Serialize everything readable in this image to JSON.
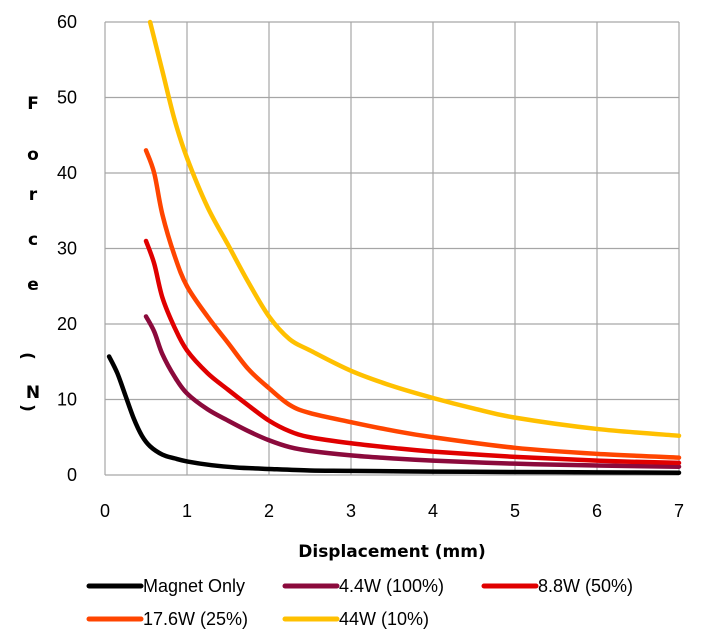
{
  "chart_data": {
    "type": "line",
    "title": "",
    "xlabel": "Displacement (mm)",
    "ylabel": "Force (N)",
    "ylabel_chars": [
      "F",
      "o",
      "r",
      "c",
      "e",
      "(",
      "N",
      ")"
    ],
    "xlim": [
      0,
      7
    ],
    "ylim": [
      0,
      60
    ],
    "x_ticks": [
      0,
      1,
      2,
      3,
      4,
      5,
      6,
      7
    ],
    "y_ticks": [
      0,
      10,
      20,
      30,
      40,
      50,
      60
    ],
    "x_tick_labels": [
      "0",
      "1",
      "2",
      "3",
      "4",
      "5",
      "6",
      "7"
    ],
    "y_tick_labels": [
      "0",
      "10",
      "20",
      "30",
      "40",
      "50",
      "60"
    ],
    "grid": true,
    "legend_position": "bottom",
    "series": [
      {
        "name": "Magnet Only",
        "color": "#000000",
        "points": [
          [
            0.05,
            15.7
          ],
          [
            0.15,
            13.5
          ],
          [
            0.25,
            10.5
          ],
          [
            0.35,
            7.5
          ],
          [
            0.45,
            5.2
          ],
          [
            0.55,
            3.8
          ],
          [
            0.7,
            2.7
          ],
          [
            0.85,
            2.2
          ],
          [
            1.0,
            1.8
          ],
          [
            1.3,
            1.3
          ],
          [
            1.6,
            1.0
          ],
          [
            2.0,
            0.8
          ],
          [
            2.5,
            0.6
          ],
          [
            3.0,
            0.55
          ],
          [
            4.0,
            0.45
          ],
          [
            5.0,
            0.4
          ],
          [
            6.0,
            0.35
          ],
          [
            7.0,
            0.3
          ]
        ]
      },
      {
        "name": "4.4W (100%)",
        "color": "#8B0A3C",
        "points": [
          [
            0.5,
            21.0
          ],
          [
            0.6,
            19.0
          ],
          [
            0.7,
            16.0
          ],
          [
            0.85,
            13.0
          ],
          [
            1.0,
            10.8
          ],
          [
            1.25,
            8.7
          ],
          [
            1.5,
            7.2
          ],
          [
            1.75,
            5.8
          ],
          [
            2.0,
            4.6
          ],
          [
            2.25,
            3.7
          ],
          [
            2.5,
            3.2
          ],
          [
            3.0,
            2.6
          ],
          [
            3.5,
            2.2
          ],
          [
            4.0,
            1.9
          ],
          [
            5.0,
            1.5
          ],
          [
            6.0,
            1.25
          ],
          [
            7.0,
            1.1
          ]
        ]
      },
      {
        "name": "8.8W (50%)",
        "color": "#E00000",
        "points": [
          [
            0.5,
            31.0
          ],
          [
            0.6,
            28.0
          ],
          [
            0.7,
            23.5
          ],
          [
            0.85,
            19.5
          ],
          [
            1.0,
            16.5
          ],
          [
            1.25,
            13.5
          ],
          [
            1.5,
            11.3
          ],
          [
            1.75,
            9.2
          ],
          [
            2.0,
            7.2
          ],
          [
            2.25,
            5.8
          ],
          [
            2.5,
            5.0
          ],
          [
            3.0,
            4.2
          ],
          [
            3.5,
            3.6
          ],
          [
            4.0,
            3.1
          ],
          [
            5.0,
            2.4
          ],
          [
            6.0,
            1.9
          ],
          [
            7.0,
            1.6
          ]
        ]
      },
      {
        "name": "17.6W (25%)",
        "color": "#FF4500",
        "points": [
          [
            0.5,
            43.0
          ],
          [
            0.6,
            40.0
          ],
          [
            0.7,
            34.5
          ],
          [
            0.85,
            29.0
          ],
          [
            1.0,
            25.0
          ],
          [
            1.25,
            21.0
          ],
          [
            1.5,
            17.5
          ],
          [
            1.75,
            14.0
          ],
          [
            2.0,
            11.5
          ],
          [
            2.25,
            9.3
          ],
          [
            2.5,
            8.2
          ],
          [
            3.0,
            7.0
          ],
          [
            3.5,
            5.9
          ],
          [
            4.0,
            5.0
          ],
          [
            5.0,
            3.6
          ],
          [
            6.0,
            2.8
          ],
          [
            7.0,
            2.3
          ]
        ]
      },
      {
        "name": "44W (10%)",
        "color": "#FFC000",
        "points": [
          [
            0.55,
            60.0
          ],
          [
            0.7,
            53.5
          ],
          [
            0.85,
            47.0
          ],
          [
            1.0,
            42.0
          ],
          [
            1.25,
            35.5
          ],
          [
            1.5,
            30.5
          ],
          [
            1.75,
            25.5
          ],
          [
            2.0,
            21.0
          ],
          [
            2.25,
            18.0
          ],
          [
            2.5,
            16.5
          ],
          [
            3.0,
            13.8
          ],
          [
            3.5,
            11.8
          ],
          [
            4.0,
            10.2
          ],
          [
            4.5,
            8.8
          ],
          [
            5.0,
            7.6
          ],
          [
            6.0,
            6.1
          ],
          [
            7.0,
            5.2
          ]
        ]
      }
    ]
  }
}
